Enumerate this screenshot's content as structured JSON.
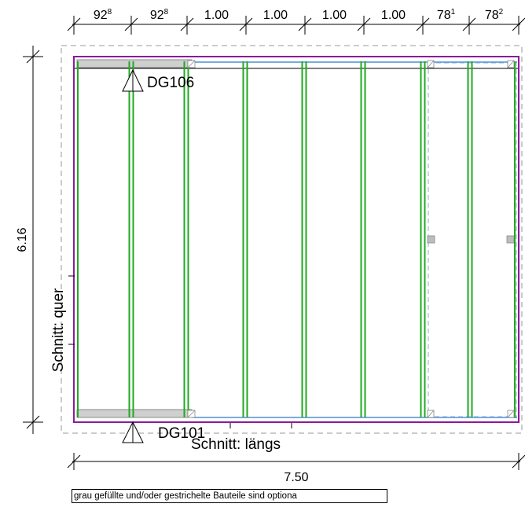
{
  "top_dimensions": [
    {
      "main": "92",
      "sup": "8"
    },
    {
      "main": "92",
      "sup": "8"
    },
    {
      "main": "1.00",
      "sup": ""
    },
    {
      "main": "1.00",
      "sup": ""
    },
    {
      "main": "1.00",
      "sup": ""
    },
    {
      "main": "1.00",
      "sup": ""
    },
    {
      "main": "78",
      "sup": "1"
    },
    {
      "main": "78",
      "sup": "2"
    }
  ],
  "overall_width": "7.50",
  "overall_depth": "6.16",
  "labels": {
    "top_marker": "DG106",
    "bottom_marker": "DG101",
    "section_cross": "Schnitt: quer",
    "section_long": "Schnitt: längs"
  },
  "note": "grau gefüllte und/oder gestrichelte Bauteile sind optiona",
  "colors": {
    "outline": "#8b1a9c",
    "rafter": "#1faa1f",
    "beam": "#4d8fd6",
    "optional_fill": "#cfcfcf",
    "dashed": "#9a9a9a"
  }
}
